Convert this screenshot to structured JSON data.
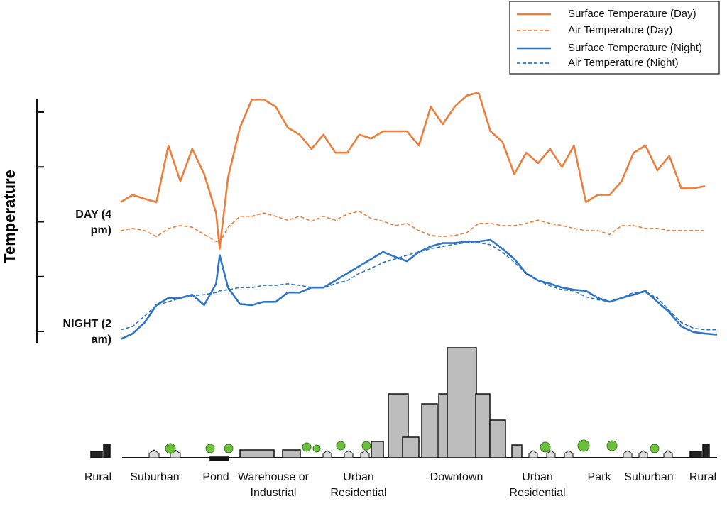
{
  "chart_data": {
    "type": "line",
    "y_label": "Temperature",
    "legend": "top-right",
    "xlim": [
      0,
      100
    ],
    "ylim": [
      -0.2,
      4.2
    ],
    "yticks": [
      {
        "value": 0,
        "label": "NIGHT (2 am)"
      },
      {
        "value": 1,
        "label": null
      },
      {
        "value": 2,
        "label": "DAY (4 pm)"
      },
      {
        "value": 3,
        "label": null
      },
      {
        "value": 4,
        "label": null
      }
    ],
    "x": [
      0,
      2,
      4,
      6,
      8,
      10,
      12,
      14,
      16,
      16.6,
      18,
      20,
      22,
      24,
      26,
      28,
      30,
      32,
      34,
      36,
      38,
      40,
      42,
      44,
      46,
      48,
      50,
      52,
      54,
      56,
      58,
      60,
      62,
      64,
      66,
      68,
      70,
      72,
      74,
      76,
      78,
      80,
      82,
      84,
      86,
      88,
      90,
      92,
      94,
      96,
      98,
      100
    ],
    "series": [
      {
        "name": "Surface Temperature (Day)",
        "color": "#ed7d3a",
        "dashed": false,
        "values": [
          2.36,
          2.49,
          2.42,
          2.36,
          3.39,
          2.74,
          3.33,
          2.87,
          2.16,
          1.51,
          2.81,
          3.72,
          4.23,
          4.23,
          4.1,
          3.72,
          3.59,
          3.33,
          3.59,
          3.26,
          3.26,
          3.59,
          3.52,
          3.65,
          3.65,
          3.65,
          3.39,
          4.1,
          3.78,
          4.1,
          4.3,
          4.36,
          3.65,
          3.46,
          2.87,
          3.26,
          3.07,
          3.33,
          3.0,
          3.39,
          2.36,
          2.49,
          2.49,
          2.74,
          3.26,
          3.39,
          2.94,
          3.2,
          2.61,
          2.61,
          2.65,
          null
        ]
      },
      {
        "name": "Air Temperature  (Day)",
        "color": "#ed7d3a",
        "dashed": true,
        "values": [
          1.84,
          1.88,
          1.84,
          1.73,
          1.88,
          1.93,
          1.9,
          1.77,
          1.64,
          1.62,
          1.9,
          2.1,
          2.1,
          2.16,
          2.1,
          2.03,
          2.1,
          2.01,
          2.1,
          2.03,
          2.14,
          2.19,
          2.06,
          2.01,
          1.93,
          1.97,
          1.84,
          1.75,
          1.73,
          1.75,
          1.8,
          1.97,
          1.97,
          1.93,
          1.93,
          1.97,
          2.03,
          1.97,
          1.93,
          1.88,
          1.84,
          1.84,
          1.77,
          1.93,
          1.93,
          1.88,
          1.88,
          1.84,
          1.84,
          1.84,
          1.84,
          null
        ]
      },
      {
        "name": "Surface Temperature (Night)",
        "color": "#2e75c6",
        "dashed": false,
        "values": [
          -0.14,
          -0.04,
          0.16,
          0.48,
          0.61,
          0.61,
          0.67,
          0.48,
          0.87,
          1.39,
          0.8,
          0.5,
          0.48,
          0.54,
          0.54,
          0.71,
          0.71,
          0.8,
          0.8,
          0.93,
          1.06,
          1.19,
          1.32,
          1.45,
          1.36,
          1.28,
          1.45,
          1.55,
          1.61,
          1.61,
          1.64,
          1.64,
          1.67,
          1.51,
          1.32,
          1.06,
          0.93,
          0.87,
          0.8,
          0.76,
          0.74,
          0.61,
          0.54,
          0.61,
          0.67,
          0.74,
          0.54,
          0.35,
          0.09,
          -0.01,
          -0.04,
          -0.06
        ]
      },
      {
        "name": "Air Temperature (Night)",
        "color": "#2e75c6",
        "dashed": true,
        "values": [
          0.03,
          0.09,
          0.28,
          0.48,
          0.54,
          0.61,
          0.65,
          0.67,
          0.71,
          0.74,
          0.76,
          0.8,
          0.8,
          0.84,
          0.84,
          0.87,
          0.84,
          0.8,
          0.8,
          0.87,
          0.93,
          1.06,
          1.15,
          1.26,
          1.32,
          1.39,
          1.45,
          1.51,
          1.55,
          1.59,
          1.62,
          1.62,
          1.58,
          1.45,
          1.26,
          1.06,
          0.93,
          0.83,
          0.76,
          0.74,
          0.63,
          0.58,
          0.54,
          0.61,
          0.71,
          0.71,
          0.61,
          0.38,
          0.16,
          0.06,
          0.03,
          0.03
        ]
      }
    ],
    "zones": [
      "Rural",
      "Suburban",
      "Pond",
      "Warehouse or Industrial",
      "Urban Residential",
      "Downtown",
      "Urban Residential",
      "Park",
      "Suburban",
      "Rural"
    ]
  }
}
